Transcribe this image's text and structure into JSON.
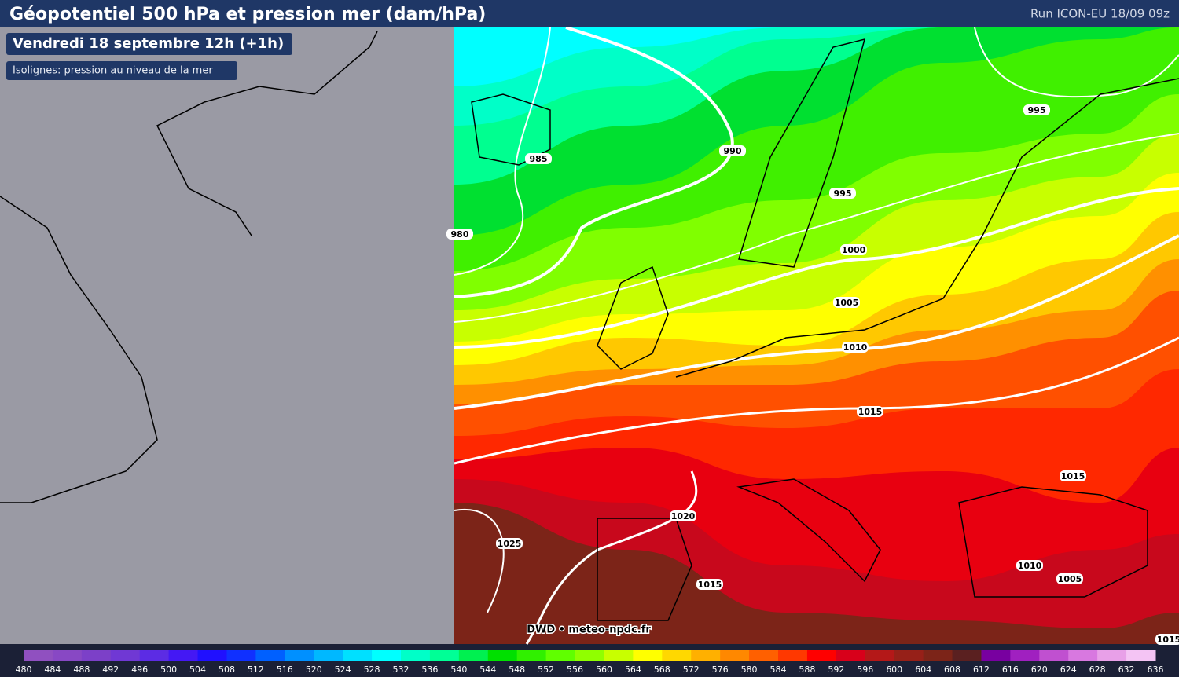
{
  "header": {
    "title": "Géopotentiel 500 hPa et pression mer (dam/hPa)",
    "run": "Run ICON-EU 18/09 09z"
  },
  "panel": {
    "date": "Vendredi 18 septembre 12h (+1h)",
    "isolines": "Isolignes: pression au niveau de la mer"
  },
  "isobars": [
    "985",
    "990",
    "980",
    "995",
    "995",
    "1000",
    "1005",
    "1010",
    "1015",
    "1015",
    "1020",
    "1025",
    "1015",
    "1010",
    "1005",
    "1015"
  ],
  "credit": "DWD • meteo-npdc.fr",
  "legend": {
    "labels": [
      480,
      484,
      488,
      492,
      496,
      500,
      504,
      508,
      512,
      516,
      520,
      524,
      528,
      532,
      536,
      540,
      544,
      548,
      552,
      556,
      560,
      564,
      568,
      572,
      576,
      580,
      584,
      588,
      592,
      596,
      600,
      604,
      608,
      612,
      616,
      620,
      624,
      628,
      632,
      636
    ],
    "colors": [
      "#9050c0",
      "#8848c4",
      "#7c40c8",
      "#7038d4",
      "#5c2ce4",
      "#4418f4",
      "#2010ff",
      "#1030ff",
      "#0060ff",
      "#0090ff",
      "#00b8ff",
      "#00e0ff",
      "#00ffff",
      "#00ffc8",
      "#00ff96",
      "#00f050",
      "#00e000",
      "#30f000",
      "#60ff00",
      "#90ff00",
      "#c8ff00",
      "#ffff00",
      "#ffd800",
      "#ffb000",
      "#ff8800",
      "#ff6000",
      "#ff3800",
      "#ff0000",
      "#d8001a",
      "#b41818",
      "#962018",
      "#7c2418",
      "#5a2020",
      "#7800a0",
      "#a020c0",
      "#c050d0",
      "#d878e0",
      "#e8a0e8",
      "#f4c4f4"
    ]
  }
}
